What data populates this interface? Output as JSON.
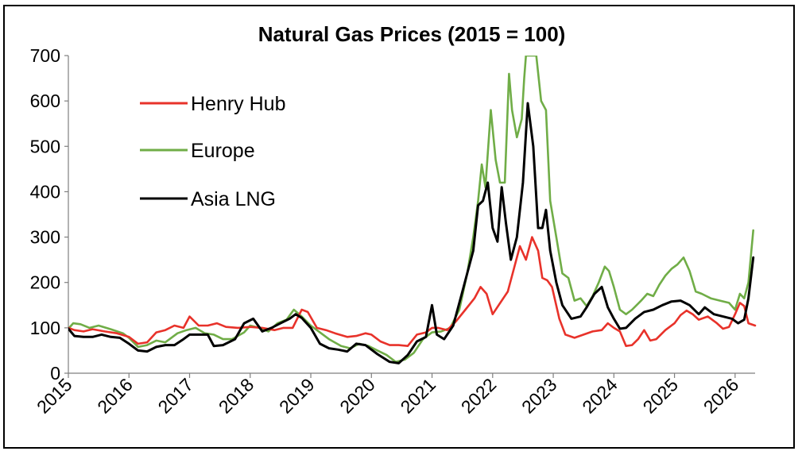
{
  "chart_data": {
    "type": "line",
    "title": "Natural Gas Prices (2015 = 100)",
    "xlabel": "",
    "ylabel": "",
    "x_domain": [
      2015.0,
      2026.33
    ],
    "ylim": [
      0,
      700
    ],
    "yticks": [
      "0",
      "100",
      "200",
      "300",
      "400",
      "500",
      "600",
      "700"
    ],
    "xticks": [
      "2015",
      "2016",
      "2017",
      "2018",
      "2019",
      "2020",
      "2021",
      "2022",
      "2023",
      "2024",
      "2025",
      "2026"
    ],
    "grid": false,
    "legend_position": "top-left",
    "series": [
      {
        "name": "Henry Hub",
        "color": "#e8322a",
        "points": [
          [
            2015.0,
            100
          ],
          [
            2015.1,
            95
          ],
          [
            2015.25,
            92
          ],
          [
            2015.4,
            97
          ],
          [
            2015.6,
            92
          ],
          [
            2015.8,
            88
          ],
          [
            2016.0,
            80
          ],
          [
            2016.15,
            65
          ],
          [
            2016.3,
            68
          ],
          [
            2016.45,
            90
          ],
          [
            2016.6,
            95
          ],
          [
            2016.75,
            105
          ],
          [
            2016.9,
            100
          ],
          [
            2017.0,
            125
          ],
          [
            2017.15,
            105
          ],
          [
            2017.3,
            105
          ],
          [
            2017.45,
            110
          ],
          [
            2017.6,
            102
          ],
          [
            2017.8,
            100
          ],
          [
            2018.0,
            102
          ],
          [
            2018.2,
            100
          ],
          [
            2018.4,
            95
          ],
          [
            2018.55,
            100
          ],
          [
            2018.7,
            100
          ],
          [
            2018.85,
            140
          ],
          [
            2018.95,
            135
          ],
          [
            2019.1,
            100
          ],
          [
            2019.25,
            95
          ],
          [
            2019.4,
            88
          ],
          [
            2019.6,
            80
          ],
          [
            2019.75,
            82
          ],
          [
            2019.9,
            88
          ],
          [
            2020.0,
            85
          ],
          [
            2020.15,
            70
          ],
          [
            2020.3,
            62
          ],
          [
            2020.45,
            62
          ],
          [
            2020.6,
            60
          ],
          [
            2020.75,
            85
          ],
          [
            2020.9,
            90
          ],
          [
            2021.0,
            100
          ],
          [
            2021.1,
            100
          ],
          [
            2021.25,
            95
          ],
          [
            2021.4,
            115
          ],
          [
            2021.55,
            140
          ],
          [
            2021.7,
            165
          ],
          [
            2021.8,
            190
          ],
          [
            2021.9,
            175
          ],
          [
            2022.0,
            130
          ],
          [
            2022.1,
            150
          ],
          [
            2022.25,
            180
          ],
          [
            2022.35,
            230
          ],
          [
            2022.45,
            280
          ],
          [
            2022.55,
            250
          ],
          [
            2022.65,
            300
          ],
          [
            2022.75,
            270
          ],
          [
            2022.82,
            210
          ],
          [
            2022.9,
            205
          ],
          [
            2022.98,
            190
          ],
          [
            2023.1,
            120
          ],
          [
            2023.2,
            85
          ],
          [
            2023.35,
            78
          ],
          [
            2023.5,
            85
          ],
          [
            2023.65,
            92
          ],
          [
            2023.8,
            95
          ],
          [
            2023.9,
            110
          ],
          [
            2024.0,
            100
          ],
          [
            2024.1,
            92
          ],
          [
            2024.2,
            60
          ],
          [
            2024.3,
            62
          ],
          [
            2024.4,
            75
          ],
          [
            2024.5,
            95
          ],
          [
            2024.6,
            72
          ],
          [
            2024.7,
            75
          ],
          [
            2024.85,
            95
          ],
          [
            2025.0,
            110
          ],
          [
            2025.1,
            128
          ],
          [
            2025.2,
            138
          ],
          [
            2025.3,
            130
          ],
          [
            2025.4,
            118
          ],
          [
            2025.55,
            125
          ],
          [
            2025.7,
            110
          ],
          [
            2025.8,
            98
          ],
          [
            2025.9,
            102
          ],
          [
            2026.0,
            130
          ],
          [
            2026.08,
            155
          ],
          [
            2026.15,
            148
          ],
          [
            2026.22,
            110
          ],
          [
            2026.33,
            105
          ]
        ]
      },
      {
        "name": "Europe",
        "color": "#70ad47",
        "points": [
          [
            2015.0,
            98
          ],
          [
            2015.08,
            110
          ],
          [
            2015.2,
            108
          ],
          [
            2015.35,
            100
          ],
          [
            2015.5,
            105
          ],
          [
            2015.7,
            97
          ],
          [
            2015.9,
            88
          ],
          [
            2016.0,
            78
          ],
          [
            2016.15,
            58
          ],
          [
            2016.3,
            62
          ],
          [
            2016.45,
            72
          ],
          [
            2016.6,
            68
          ],
          [
            2016.8,
            88
          ],
          [
            2016.95,
            95
          ],
          [
            2017.1,
            100
          ],
          [
            2017.25,
            88
          ],
          [
            2017.4,
            85
          ],
          [
            2017.55,
            75
          ],
          [
            2017.7,
            75
          ],
          [
            2017.9,
            90
          ],
          [
            2018.0,
            105
          ],
          [
            2018.15,
            100
          ],
          [
            2018.3,
            92
          ],
          [
            2018.45,
            110
          ],
          [
            2018.6,
            118
          ],
          [
            2018.72,
            140
          ],
          [
            2018.85,
            125
          ],
          [
            2019.0,
            105
          ],
          [
            2019.15,
            90
          ],
          [
            2019.3,
            75
          ],
          [
            2019.5,
            60
          ],
          [
            2019.65,
            55
          ],
          [
            2019.8,
            65
          ],
          [
            2019.95,
            60
          ],
          [
            2020.1,
            50
          ],
          [
            2020.25,
            40
          ],
          [
            2020.4,
            25
          ],
          [
            2020.55,
            30
          ],
          [
            2020.7,
            45
          ],
          [
            2020.85,
            75
          ],
          [
            2021.0,
            90
          ],
          [
            2021.15,
            92
          ],
          [
            2021.3,
            100
          ],
          [
            2021.45,
            140
          ],
          [
            2021.58,
            220
          ],
          [
            2021.68,
            300
          ],
          [
            2021.76,
            380
          ],
          [
            2021.82,
            460
          ],
          [
            2021.88,
            410
          ],
          [
            2021.97,
            580
          ],
          [
            2022.05,
            470
          ],
          [
            2022.12,
            420
          ],
          [
            2022.2,
            420
          ],
          [
            2022.27,
            660
          ],
          [
            2022.32,
            580
          ],
          [
            2022.4,
            520
          ],
          [
            2022.48,
            560
          ],
          [
            2022.52,
            650
          ],
          [
            2022.55,
            700
          ],
          [
            2022.72,
            700
          ],
          [
            2022.8,
            600
          ],
          [
            2022.88,
            580
          ],
          [
            2022.95,
            380
          ],
          [
            2023.05,
            300
          ],
          [
            2023.15,
            220
          ],
          [
            2023.25,
            210
          ],
          [
            2023.35,
            160
          ],
          [
            2023.45,
            165
          ],
          [
            2023.55,
            148
          ],
          [
            2023.65,
            170
          ],
          [
            2023.75,
            200
          ],
          [
            2023.85,
            235
          ],
          [
            2023.92,
            225
          ],
          [
            2024.0,
            190
          ],
          [
            2024.1,
            140
          ],
          [
            2024.2,
            130
          ],
          [
            2024.3,
            140
          ],
          [
            2024.45,
            160
          ],
          [
            2024.55,
            175
          ],
          [
            2024.65,
            170
          ],
          [
            2024.75,
            195
          ],
          [
            2024.85,
            215
          ],
          [
            2024.95,
            230
          ],
          [
            2025.05,
            240
          ],
          [
            2025.15,
            255
          ],
          [
            2025.25,
            225
          ],
          [
            2025.35,
            180
          ],
          [
            2025.45,
            175
          ],
          [
            2025.6,
            165
          ],
          [
            2025.75,
            160
          ],
          [
            2025.9,
            155
          ],
          [
            2026.0,
            140
          ],
          [
            2026.08,
            175
          ],
          [
            2026.15,
            165
          ],
          [
            2026.22,
            200
          ],
          [
            2026.3,
            315
          ]
        ]
      },
      {
        "name": "Asia LNG",
        "color": "#000000",
        "points": [
          [
            2015.0,
            98
          ],
          [
            2015.1,
            82
          ],
          [
            2015.25,
            80
          ],
          [
            2015.4,
            80
          ],
          [
            2015.55,
            85
          ],
          [
            2015.7,
            80
          ],
          [
            2015.85,
            78
          ],
          [
            2016.0,
            65
          ],
          [
            2016.15,
            50
          ],
          [
            2016.3,
            48
          ],
          [
            2016.45,
            58
          ],
          [
            2016.6,
            62
          ],
          [
            2016.75,
            62
          ],
          [
            2016.9,
            75
          ],
          [
            2017.0,
            85
          ],
          [
            2017.15,
            85
          ],
          [
            2017.3,
            85
          ],
          [
            2017.4,
            60
          ],
          [
            2017.55,
            62
          ],
          [
            2017.75,
            75
          ],
          [
            2017.9,
            110
          ],
          [
            2018.05,
            120
          ],
          [
            2018.2,
            92
          ],
          [
            2018.35,
            100
          ],
          [
            2018.5,
            110
          ],
          [
            2018.65,
            120
          ],
          [
            2018.75,
            130
          ],
          [
            2018.85,
            122
          ],
          [
            2019.0,
            100
          ],
          [
            2019.15,
            65
          ],
          [
            2019.3,
            55
          ],
          [
            2019.45,
            52
          ],
          [
            2019.6,
            48
          ],
          [
            2019.75,
            65
          ],
          [
            2019.9,
            62
          ],
          [
            2020.1,
            42
          ],
          [
            2020.3,
            25
          ],
          [
            2020.45,
            22
          ],
          [
            2020.6,
            40
          ],
          [
            2020.75,
            70
          ],
          [
            2020.9,
            80
          ],
          [
            2021.0,
            150
          ],
          [
            2021.08,
            85
          ],
          [
            2021.2,
            75
          ],
          [
            2021.35,
            105
          ],
          [
            2021.48,
            170
          ],
          [
            2021.58,
            220
          ],
          [
            2021.68,
            270
          ],
          [
            2021.76,
            370
          ],
          [
            2021.84,
            380
          ],
          [
            2021.92,
            420
          ],
          [
            2022.0,
            320
          ],
          [
            2022.08,
            290
          ],
          [
            2022.15,
            410
          ],
          [
            2022.22,
            330
          ],
          [
            2022.3,
            250
          ],
          [
            2022.4,
            300
          ],
          [
            2022.5,
            420
          ],
          [
            2022.58,
            595
          ],
          [
            2022.67,
            500
          ],
          [
            2022.75,
            320
          ],
          [
            2022.82,
            320
          ],
          [
            2022.88,
            360
          ],
          [
            2022.95,
            270
          ],
          [
            2023.05,
            200
          ],
          [
            2023.15,
            150
          ],
          [
            2023.3,
            120
          ],
          [
            2023.45,
            125
          ],
          [
            2023.55,
            145
          ],
          [
            2023.68,
            175
          ],
          [
            2023.8,
            190
          ],
          [
            2023.9,
            145
          ],
          [
            2024.0,
            120
          ],
          [
            2024.1,
            98
          ],
          [
            2024.2,
            100
          ],
          [
            2024.35,
            120
          ],
          [
            2024.5,
            135
          ],
          [
            2024.65,
            140
          ],
          [
            2024.8,
            150
          ],
          [
            2024.95,
            158
          ],
          [
            2025.1,
            160
          ],
          [
            2025.25,
            150
          ],
          [
            2025.4,
            130
          ],
          [
            2025.5,
            145
          ],
          [
            2025.65,
            130
          ],
          [
            2025.8,
            125
          ],
          [
            2025.95,
            120
          ],
          [
            2026.05,
            110
          ],
          [
            2026.15,
            118
          ],
          [
            2026.22,
            165
          ],
          [
            2026.3,
            255
          ]
        ]
      }
    ]
  }
}
